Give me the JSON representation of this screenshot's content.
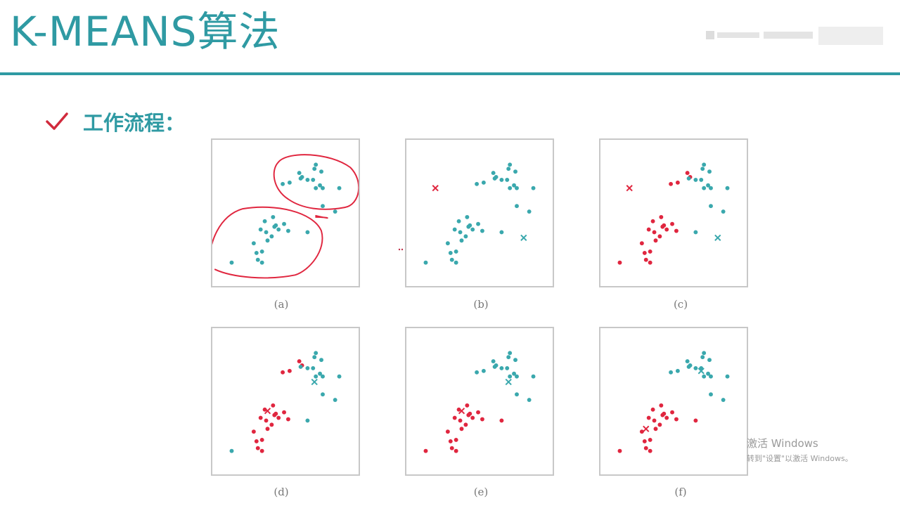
{
  "slide": {
    "title": "K-MEANS算法",
    "section_label": "工作流程：",
    "check_icon": "check-icon",
    "accent_color": "#2f9aa3",
    "check_color": "#d12a3c"
  },
  "panels": [
    {
      "caption": "(a)",
      "state": "raw-data-with-circled-groups"
    },
    {
      "caption": "(b)",
      "state": "initial-centroids"
    },
    {
      "caption": "(c)",
      "state": "first-assignment"
    },
    {
      "caption": "(d)",
      "state": "centroids-moved"
    },
    {
      "caption": "(e)",
      "state": "reassignment"
    },
    {
      "caption": "(f)",
      "state": "converged"
    }
  ],
  "colors": {
    "cluster_a": "#3aa8ad",
    "cluster_b": "#e0263f",
    "annotation": "#e0263f",
    "frame": "#c8c8c8"
  },
  "watermark": {
    "title": "激活 Windows",
    "subtitle": "转到\"设置\"以激活 Windows。"
  }
}
